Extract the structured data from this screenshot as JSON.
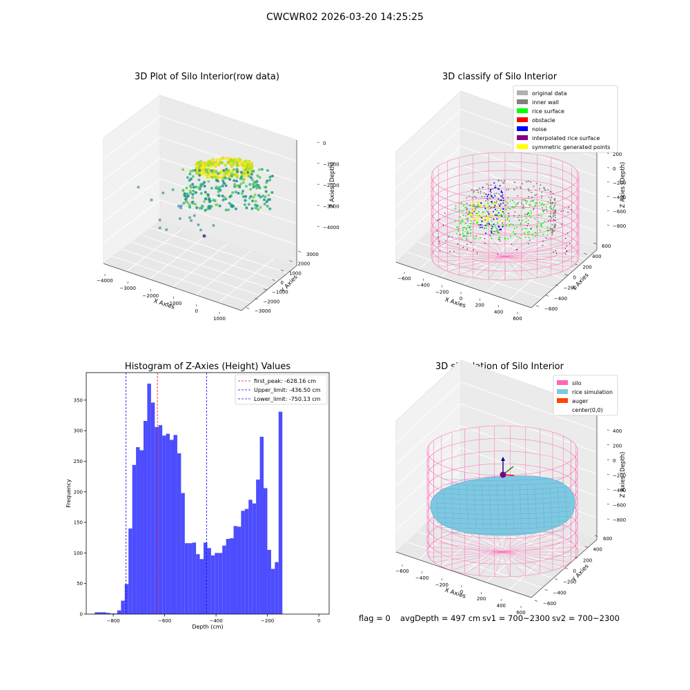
{
  "suptitle": "CWCWR02 2026-03-20 14:25:25",
  "status": {
    "flag": "flag = 0",
    "avg_depth": "avgDepth = 497 cm",
    "sv1": "sv1 = 700~2300",
    "sv2": "sv2 = 700~2300"
  },
  "colors": {
    "histogram": "#4d4dff",
    "first_peak": "#ff0000",
    "limits": "#0000ff",
    "silo_wire": "#ff69b4",
    "rice_sim": "#7ec8e3",
    "auger": "#ff4500",
    "original": "#b0b0b0",
    "inner_wall": "#808080",
    "rice_surface": "#00ff00",
    "obstacle": "#ff0000",
    "noise": "#0000ff",
    "interpolated": "#800080",
    "symmetric": "#ffff00"
  },
  "chart_data": [
    {
      "type": "scatter",
      "title": "3D Plot of Silo Interior(row data)",
      "xlabel": "X Axies",
      "ylabel": "Y Axies",
      "zlabel": "Z Axies (Depth)",
      "x_ticks": [
        "−4000",
        "−3000",
        "−2000",
        "−1000",
        "0",
        "1000"
      ],
      "y_ticks": [
        "−3000",
        "−2000",
        "−1000",
        "0",
        "1000",
        "2000",
        "3000"
      ],
      "z_ticks": [
        "0",
        "−1000",
        "−2000",
        "−3000",
        "−4000"
      ]
    },
    {
      "type": "scatter",
      "title": "3D classify of Silo Interior",
      "xlabel": "X Axies",
      "ylabel": "Y Axies",
      "zlabel": "Z Axies (Depth)",
      "x_ticks": [
        "−600",
        "−400",
        "−200",
        "0",
        "200",
        "400",
        "600"
      ],
      "y_ticks": [
        "−600",
        "−400",
        "−200",
        "0",
        "200",
        "400",
        "600"
      ],
      "z_ticks": [
        "200",
        "0",
        "−200",
        "−400",
        "−600",
        "−800"
      ],
      "legend": [
        "original data",
        "inner wall",
        "rice surface",
        "obstacle",
        "noise",
        "interpolated rice surface",
        "symmetric generated points"
      ],
      "legend_position": "top-right"
    },
    {
      "type": "bar",
      "title": "Histogram of Z-Axies (Height) Values",
      "xlabel": "Depth (cm)",
      "ylabel": "Frequency",
      "x_range": [
        -905,
        40
      ],
      "ylim": [
        0,
        395
      ],
      "x_ticks": [
        -800,
        -600,
        -400,
        -200,
        0
      ],
      "x_tick_labels": [
        "−800",
        "−600",
        "−400",
        "−200",
        "0"
      ],
      "y_ticks": [
        0,
        50,
        100,
        150,
        200,
        250,
        300,
        350
      ],
      "bin_start": -872,
      "bin_width": 14.6,
      "values": [
        3,
        3,
        3,
        2,
        1,
        1,
        6,
        22,
        49,
        140,
        244,
        273,
        268,
        316,
        377,
        346,
        306,
        309,
        292,
        295,
        285,
        293,
        263,
        198,
        116,
        116,
        117,
        98,
        90,
        117,
        108,
        96,
        100,
        100,
        112,
        123,
        124,
        144,
        143,
        169,
        172,
        187,
        181,
        220,
        290,
        206,
        105,
        74,
        85,
        331
      ],
      "lines": [
        {
          "label": "first_peak: -628.16 cm",
          "x": -628.16,
          "color": "#ff0000"
        },
        {
          "label": "Upper_limit: -436.50 cm",
          "x": -436.5,
          "color": "#0000ff"
        },
        {
          "label": "Lower_limit: -750.13 cm",
          "x": -750.13,
          "color": "#0000ff"
        }
      ],
      "legend_position": "top-right"
    },
    {
      "type": "scatter",
      "title": "3D simulation of Silo Interior",
      "xlabel": "X Axies",
      "ylabel": "Y Axies",
      "zlabel": "Z Axies (Depth)",
      "x_ticks": [
        "−600",
        "−400",
        "−200",
        "0",
        "200",
        "400",
        "600"
      ],
      "y_ticks": [
        "−600",
        "−400",
        "−200",
        "0",
        "200",
        "400",
        "600"
      ],
      "z_ticks": [
        "400",
        "200",
        "0",
        "−200",
        "−400",
        "−600",
        "−800"
      ],
      "legend": [
        "silo",
        "rice simulation",
        "auger",
        "center(0,0)"
      ],
      "legend_position": "top-right"
    }
  ]
}
